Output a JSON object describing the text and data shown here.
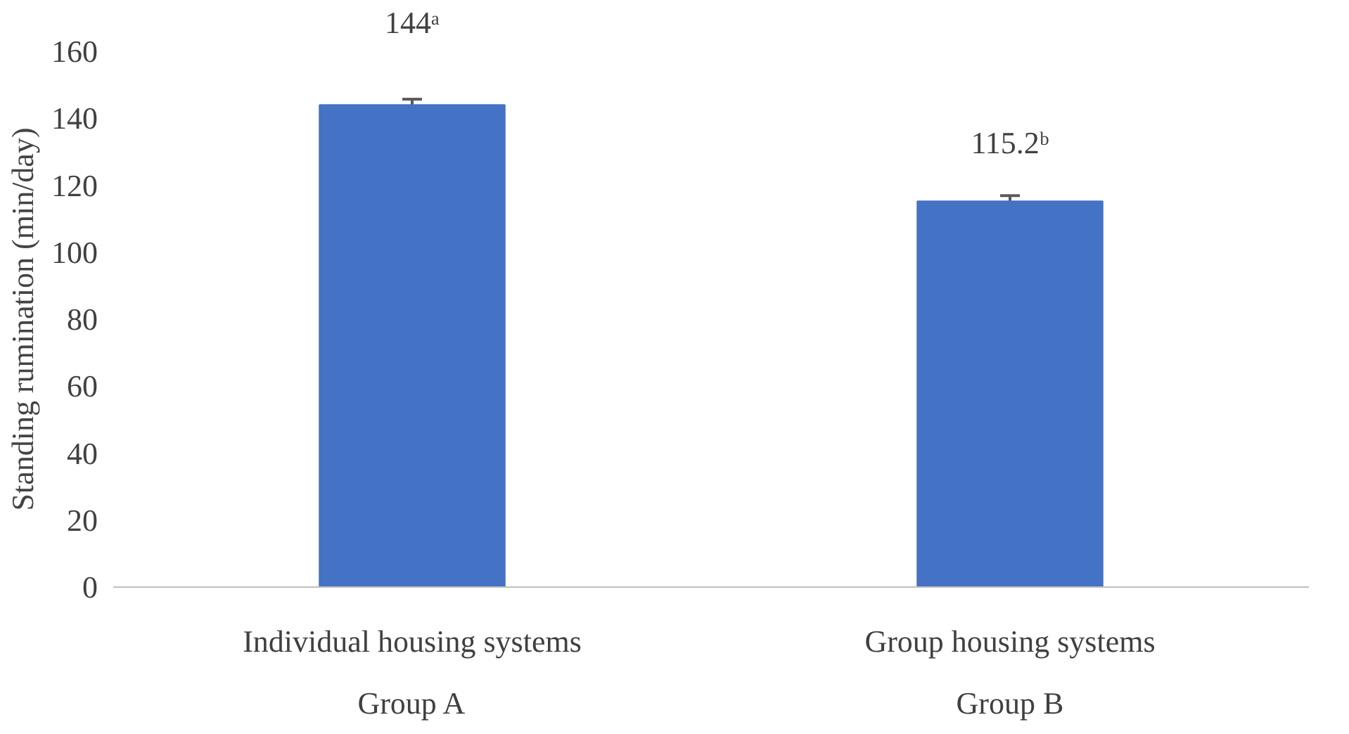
{
  "chart_data": {
    "type": "bar",
    "ylabel": "Standing rumination (min/day)",
    "categories": [
      "Individual housing systems",
      "Group housing systems"
    ],
    "values": [
      144,
      115.2
    ],
    "errors": [
      1.7,
      1.7
    ],
    "color": "#4472c4",
    "value_labels": [
      "144ᵃ",
      "115.2ᵇ"
    ],
    "annotations": [
      "Group A",
      "Group B"
    ],
    "ylim": [
      0,
      160
    ],
    "yticks": [
      0,
      20,
      40,
      60,
      80,
      100,
      120,
      140,
      160
    ],
    "grid": false
  }
}
